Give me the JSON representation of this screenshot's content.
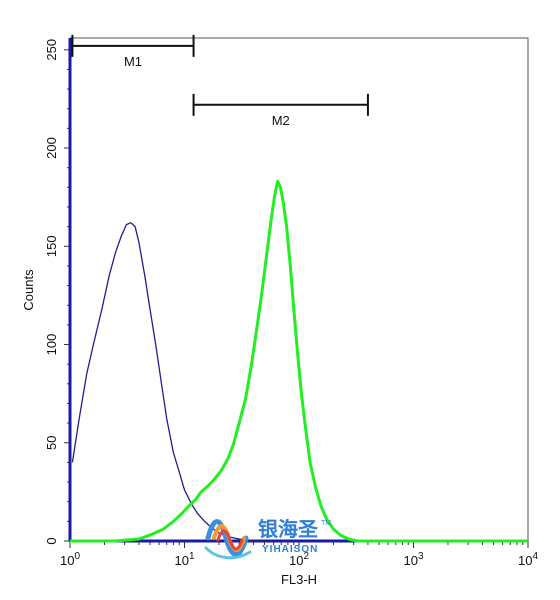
{
  "chart_data": {
    "type": "line",
    "xlabel": "FL3-H",
    "ylabel": "Counts",
    "x_scale": "log",
    "xlim": [
      1,
      10000
    ],
    "ylim": [
      0,
      256
    ],
    "x_ticks": [
      1,
      10,
      100,
      1000,
      10000
    ],
    "x_tick_labels": [
      {
        "base": "10",
        "exp": "0"
      },
      {
        "base": "10",
        "exp": "1"
      },
      {
        "base": "10",
        "exp": "2"
      },
      {
        "base": "10",
        "exp": "3"
      },
      {
        "base": "10",
        "exp": "4"
      }
    ],
    "y_ticks": [
      0,
      50,
      100,
      150,
      200,
      250
    ],
    "y_tick_labels": [
      "0",
      "50",
      "100",
      "150",
      "200",
      "250"
    ],
    "grid": false,
    "markers": [
      {
        "label": "M1",
        "x_start": 1.05,
        "x_end": 12,
        "y": 252
      },
      {
        "label": "M2",
        "x_start": 12,
        "x_end": 400,
        "y": 222
      }
    ],
    "series": [
      {
        "color": "#1f1f8f",
        "points": [
          [
            1.05,
            40
          ],
          [
            1.2,
            62
          ],
          [
            1.4,
            85
          ],
          [
            1.6,
            100
          ],
          [
            1.9,
            118
          ],
          [
            2.2,
            135
          ],
          [
            2.5,
            147
          ],
          [
            2.8,
            155
          ],
          [
            3.1,
            161
          ],
          [
            3.4,
            162
          ],
          [
            3.7,
            160
          ],
          [
            4.0,
            152
          ],
          [
            4.5,
            135
          ],
          [
            5.0,
            118
          ],
          [
            5.6,
            100
          ],
          [
            6.3,
            80
          ],
          [
            7.0,
            62
          ],
          [
            8.0,
            45
          ],
          [
            9.0,
            35
          ],
          [
            10.0,
            26
          ],
          [
            11.5,
            19
          ],
          [
            13,
            14
          ],
          [
            15,
            10
          ],
          [
            17,
            7
          ],
          [
            20,
            4
          ],
          [
            25,
            2
          ],
          [
            30,
            1
          ],
          [
            40,
            0
          ],
          [
            60,
            0
          ]
        ]
      },
      {
        "color": "#22ee22",
        "points": [
          [
            1.0,
            0
          ],
          [
            2.5,
            0
          ],
          [
            4,
            1
          ],
          [
            5,
            3
          ],
          [
            6.5,
            6
          ],
          [
            8,
            10
          ],
          [
            9.5,
            14
          ],
          [
            11,
            18
          ],
          [
            12.5,
            21
          ],
          [
            14,
            25
          ],
          [
            16,
            28
          ],
          [
            18,
            31
          ],
          [
            21,
            36
          ],
          [
            24,
            42
          ],
          [
            27,
            50
          ],
          [
            30,
            60
          ],
          [
            34,
            72
          ],
          [
            38,
            88
          ],
          [
            42,
            105
          ],
          [
            47,
            125
          ],
          [
            52,
            145
          ],
          [
            57,
            163
          ],
          [
            61,
            175
          ],
          [
            65,
            183
          ],
          [
            69,
            180
          ],
          [
            73,
            172
          ],
          [
            78,
            160
          ],
          [
            84,
            140
          ],
          [
            90,
            118
          ],
          [
            97,
            96
          ],
          [
            105,
            75
          ],
          [
            115,
            56
          ],
          [
            125,
            40
          ],
          [
            140,
            27
          ],
          [
            155,
            18
          ],
          [
            175,
            11
          ],
          [
            200,
            6
          ],
          [
            230,
            3
          ],
          [
            270,
            1
          ],
          [
            320,
            0
          ],
          [
            10000,
            0
          ]
        ]
      }
    ]
  },
  "watermark": {
    "cn_text": "银海圣",
    "en_text": "YIHAISON",
    "tm": "TM",
    "colors": [
      "#3b8fe0",
      "#f29a2e",
      "#e8413b",
      "#5fc3e4"
    ]
  }
}
